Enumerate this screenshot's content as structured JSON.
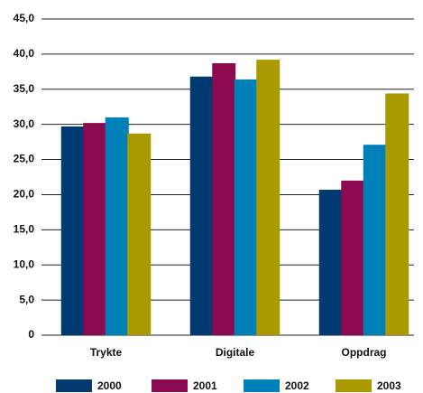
{
  "chart_data": {
    "type": "bar",
    "categories": [
      "Trykte",
      "Digitale",
      "Oppdrag"
    ],
    "series": [
      {
        "name": "2000",
        "color": "#003a70",
        "values": [
          29.7,
          36.8,
          20.7
        ]
      },
      {
        "name": "2001",
        "color": "#8b0a50",
        "values": [
          30.2,
          38.7,
          22.0
        ]
      },
      {
        "name": "2002",
        "color": "#0080b8",
        "values": [
          31.0,
          36.4,
          27.1
        ]
      },
      {
        "name": "2003",
        "color": "#a89a00",
        "values": [
          28.7,
          39.2,
          34.4
        ]
      }
    ],
    "ylim": [
      0,
      45
    ],
    "yticks": [
      0,
      {
        "value": 5,
        "label": "5,0"
      },
      {
        "value": 10,
        "label": "10,0"
      },
      {
        "value": 15,
        "label": "15,0"
      },
      {
        "value": 20,
        "label": "20,0"
      },
      {
        "value": 25,
        "label": "25,0"
      },
      {
        "value": 30,
        "label": "30,0"
      },
      {
        "value": 35,
        "label": "35,0"
      },
      {
        "value": 40,
        "label": "40,0"
      },
      {
        "value": 45,
        "label": "45,0"
      }
    ],
    "grid": true,
    "legend": "bottom"
  }
}
